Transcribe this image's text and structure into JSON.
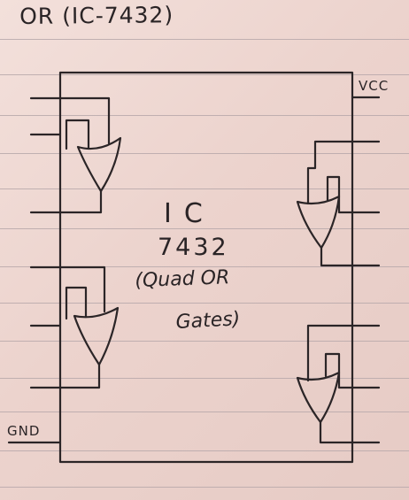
{
  "title": "OR (IC-7432)",
  "ic_label": {
    "line1": "IC",
    "line2": "7432",
    "line3": "(Quad OR",
    "line4": "Gates)"
  },
  "pins": {
    "vcc": "VCC",
    "gnd": "GND"
  },
  "gates": [
    {
      "name": "OR"
    },
    {
      "name": "OR"
    },
    {
      "name": "OR"
    },
    {
      "name": "OR"
    }
  ]
}
